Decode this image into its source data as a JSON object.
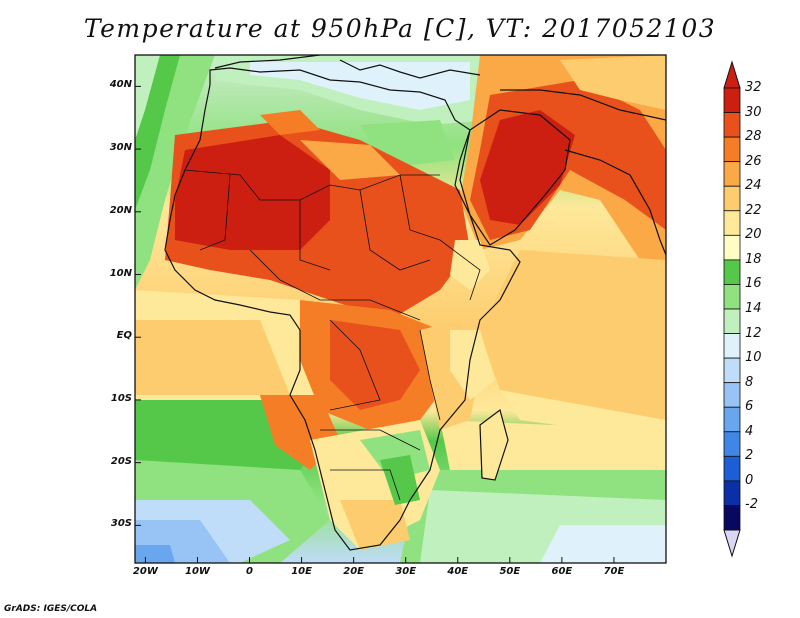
{
  "title": "Temperature at 950hPa [C], VT: 2017052103",
  "credit": "GrADS: IGES/COLA",
  "map": {
    "lon_range": [
      -22,
      80
    ],
    "lat_range": [
      -36,
      45
    ],
    "lat_ticks": [
      {
        "lat": 40,
        "label": "40N"
      },
      {
        "lat": 30,
        "label": "30N"
      },
      {
        "lat": 20,
        "label": "20N"
      },
      {
        "lat": 10,
        "label": "10N"
      },
      {
        "lat": 0,
        "label": "EQ"
      },
      {
        "lat": -10,
        "label": "10S"
      },
      {
        "lat": -20,
        "label": "20S"
      },
      {
        "lat": -30,
        "label": "30S"
      }
    ],
    "lon_ticks": [
      {
        "lon": -20,
        "label": "20W"
      },
      {
        "lon": -10,
        "label": "10W"
      },
      {
        "lon": 0,
        "label": "0"
      },
      {
        "lon": 10,
        "label": "10E"
      },
      {
        "lon": 20,
        "label": "20E"
      },
      {
        "lon": 30,
        "label": "30E"
      },
      {
        "lon": 40,
        "label": "40E"
      },
      {
        "lon": 50,
        "label": "50E"
      },
      {
        "lon": 60,
        "label": "60E"
      },
      {
        "lon": 70,
        "label": "70E"
      }
    ]
  },
  "colorbar": {
    "levels": [
      "-2",
      "0",
      "2",
      "4",
      "6",
      "8",
      "10",
      "12",
      "14",
      "16",
      "18",
      "20",
      "22",
      "24",
      "26",
      "28",
      "30",
      "32"
    ],
    "colors": [
      "#07085f",
      "#0a2fa6",
      "#1b5ed6",
      "#3f86e6",
      "#6aa6ee",
      "#97c4f4",
      "#bfdcf8",
      "#dff2fb",
      "#bff0bd",
      "#8fe27f",
      "#55c84a",
      "#fffcc4",
      "#fee89a",
      "#fdcc6e",
      "#fba846",
      "#f57d26",
      "#e8501c",
      "#cc1f12"
    ],
    "under_color": "#dad6f5",
    "over_color": "#cc1f12"
  }
}
